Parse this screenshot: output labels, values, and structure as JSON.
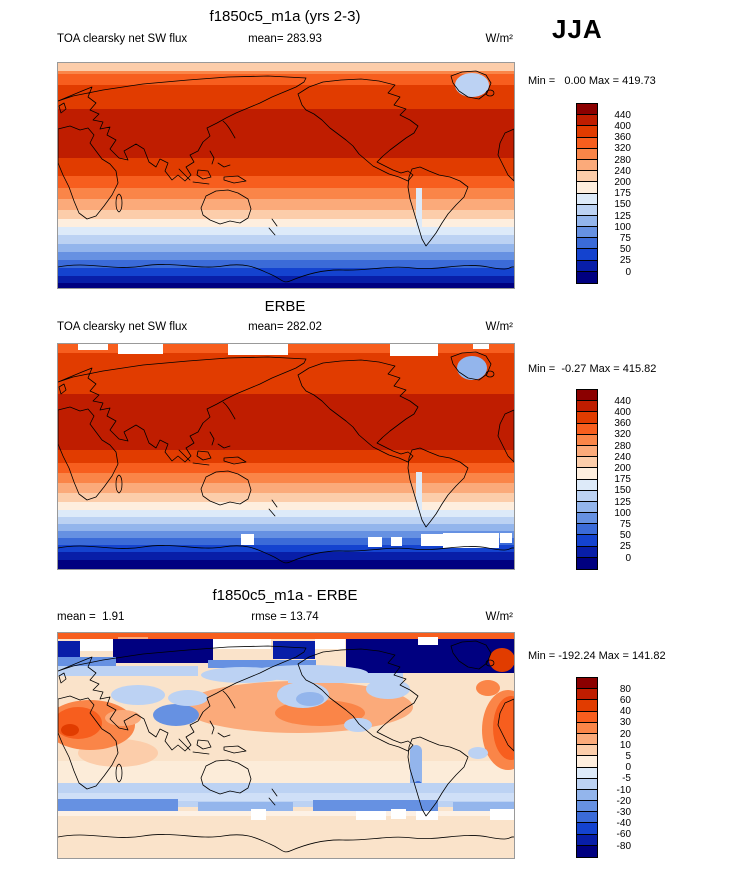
{
  "season": "JJA",
  "palette": [
    "#8b0000",
    "#bf1d00",
    "#e13c00",
    "#f75e1e",
    "#fa8548",
    "#fbaa7a",
    "#fccdaa",
    "#feeede",
    "#ddeaf9",
    "#bcd2f3",
    "#93b5ec",
    "#6691e2",
    "#3b6bd8",
    "#1443cf",
    "#081ea8",
    "#000080"
  ],
  "diff_base": "#fae3ca",
  "panels": [
    {
      "title": "f1850c5_m1a (yrs 2-3)",
      "left_label": "TOA clearsky net SW flux",
      "stat": "mean= 283.93",
      "units": "W/m²",
      "minmax": "Min =   0.00 Max = 419.73",
      "ticks": [
        "440",
        "400",
        "360",
        "320",
        "280",
        "240",
        "200",
        "175",
        "150",
        "125",
        "100",
        "75",
        "50",
        "25",
        "0"
      ]
    },
    {
      "title": "ERBE",
      "left_label": "TOA clearsky net SW flux",
      "stat": "mean= 282.02",
      "units": "W/m²",
      "minmax": "Min =  -0.27 Max = 415.82",
      "ticks": [
        "440",
        "400",
        "360",
        "320",
        "280",
        "240",
        "200",
        "175",
        "150",
        "125",
        "100",
        "75",
        "50",
        "25",
        "0"
      ]
    },
    {
      "title": "f1850c5_m1a - ERBE",
      "left_label": "mean =  1.91",
      "stat": "rmse = 13.74",
      "units": "W/m²",
      "minmax": "Min = -192.24 Max = 141.82",
      "ticks": [
        "80",
        "60",
        "40",
        "30",
        "20",
        "10",
        "5",
        "0",
        "-5",
        "-10",
        "-20",
        "-30",
        "-40",
        "-60",
        "-80"
      ]
    }
  ],
  "chart_data": [
    {
      "type": "heatmap",
      "title": "f1850c5_m1a (yrs 2-3)",
      "variable": "TOA clearsky net SW flux",
      "season": "JJA",
      "units": "W/m²",
      "mean": 283.93,
      "min": 0.0,
      "max": 419.73,
      "contour_levels": [
        0,
        25,
        50,
        75,
        100,
        125,
        150,
        175,
        200,
        240,
        280,
        320,
        360,
        400,
        440
      ],
      "projection": "global cylindrical lat-lon map, 0-360E, 90N-90S, Pacific-centered",
      "legend_position": "right",
      "description": "Filled-contour global map; high values (dark red ~440 W/m2) across NH tropics/subtropics, decreasing southward to near 0 (dark blue) over Antarctic; pale blue over Greenland."
    },
    {
      "type": "heatmap",
      "title": "ERBE",
      "variable": "TOA clearsky net SW flux",
      "season": "JJA",
      "units": "W/m²",
      "mean": 282.02,
      "min": -0.27,
      "max": 415.82,
      "contour_levels": [
        0,
        25,
        50,
        75,
        100,
        125,
        150,
        175,
        200,
        240,
        280,
        320,
        360,
        400,
        440
      ],
      "projection": "global cylindrical lat-lon map, 0-360E, 90N-90S, Pacific-centered",
      "legend_position": "right",
      "description": "Observed ERBE field, same pattern as model panel with white missing-data cells near both poles."
    },
    {
      "type": "heatmap",
      "title": "f1850c5_m1a - ERBE",
      "season": "JJA",
      "units": "W/m²",
      "mean": 1.91,
      "rmse": 13.74,
      "min": -192.24,
      "max": 141.82,
      "contour_levels": [
        -80,
        -60,
        -40,
        -30,
        -20,
        -10,
        -5,
        0,
        5,
        10,
        20,
        30,
        40,
        60,
        80
      ],
      "projection": "global cylindrical lat-lon map, 0-360E, 90N-90S, Pacific-centered",
      "legend_position": "right",
      "description": "Difference map: mostly pale positive (+0-10), strong negative (dark blue) band over Arctic/Greenland, positive (red) over Sahara-Arabia and eastern Atlantic, light blue band near 50-60S."
    }
  ]
}
